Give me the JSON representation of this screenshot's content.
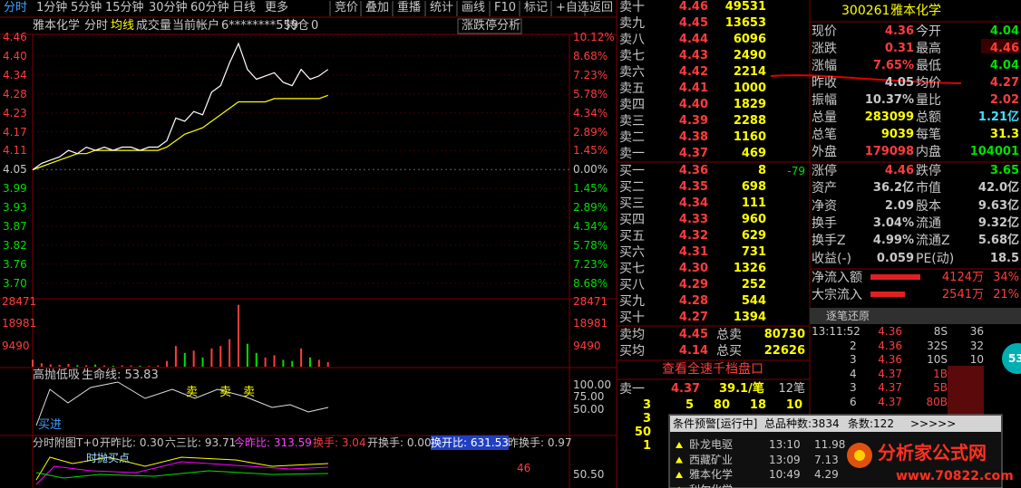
{
  "toolbar": {
    "tabs": [
      "分时",
      "1分钟",
      "5分钟",
      "15分钟",
      "30分钟",
      "60分钟",
      "日线",
      "更多"
    ],
    "buttons": [
      "竞价",
      "叠加",
      "重播",
      "统计",
      "画线",
      "F10",
      "标记",
      "+自选",
      "返回"
    ]
  },
  "info_bar": {
    "stock": "雅本化学",
    "tabs": [
      "分时",
      "均线",
      "成交量"
    ],
    "account_label": "当前帐户",
    "account": "6********559",
    "position_label": "持仓",
    "position": "0",
    "analysis": "涨跌停分析"
  },
  "price_chart": {
    "price_labels": [
      "4.46",
      "4.40",
      "4.34",
      "4.28",
      "4.23",
      "4.17",
      "4.11",
      "4.05",
      "3.99",
      "3.93",
      "3.87",
      "3.82",
      "3.76",
      "3.70"
    ],
    "percent_labels": [
      "10.12%",
      "8.68%",
      "7.23%",
      "5.78%",
      "4.34%",
      "2.89%",
      "1.45%",
      "0.00%",
      "1.45%",
      "2.89%",
      "4.34%",
      "5.78%",
      "7.23%",
      "8.68%"
    ],
    "price": [
      4.05,
      4.07,
      4.08,
      4.09,
      4.11,
      4.1,
      4.12,
      4.11,
      4.12,
      4.11,
      4.12,
      4.12,
      4.11,
      4.12,
      4.12,
      4.14,
      4.21,
      4.2,
      4.23,
      4.22,
      4.29,
      4.31,
      4.38,
      4.44,
      4.36,
      4.33,
      4.34,
      4.35,
      4.32,
      4.31,
      4.36,
      4.33,
      4.34,
      4.36
    ],
    "average": [
      4.05,
      4.06,
      4.07,
      4.08,
      4.09,
      4.1,
      4.1,
      4.11,
      4.11,
      4.11,
      4.11,
      4.11,
      4.11,
      4.11,
      4.11,
      4.12,
      4.14,
      4.16,
      4.17,
      4.18,
      4.2,
      4.22,
      4.24,
      4.26,
      4.26,
      4.26,
      4.26,
      4.27,
      4.27,
      4.27,
      4.27,
      4.27,
      4.27,
      4.28
    ]
  },
  "volume_chart": {
    "labels": [
      "28471",
      "18981",
      "9490"
    ],
    "volumes": [
      3000,
      1500,
      1000,
      800,
      1200,
      700,
      600,
      900,
      500,
      400,
      600,
      500,
      400,
      300,
      500,
      2500,
      9000,
      6000,
      7000,
      4000,
      8000,
      9000,
      12000,
      27000,
      10000,
      6000,
      4000,
      5000,
      3000,
      2500,
      8000,
      4000,
      3000,
      2000
    ]
  },
  "indicator": {
    "name": "高抛低吸",
    "line_label": "生命线: 53.83",
    "labels": [
      "100.00",
      "75.00",
      "50.00"
    ],
    "sell_marks": [
      "卖",
      "卖",
      "卖"
    ],
    "buy_mark": "买进"
  },
  "sub_chart": {
    "title": "分时附图T+0",
    "stats": [
      "开昨比: 0.30",
      "六三比: 93.71",
      "今昨比: 313.59",
      "换手: 3.04",
      "开换手: 0.00",
      "换开比: 631.53",
      "昨换手: 0.97"
    ],
    "point_label": "时抛买点",
    "value_mark": "46",
    "axis_label": "50.50"
  },
  "order_book": {
    "asks": [
      [
        "卖十",
        "4.46",
        "49531"
      ],
      [
        "卖九",
        "4.45",
        "13653"
      ],
      [
        "卖八",
        "4.44",
        "6096"
      ],
      [
        "卖七",
        "4.43",
        "2490"
      ],
      [
        "卖六",
        "4.42",
        "2214"
      ],
      [
        "卖五",
        "4.41",
        "1000"
      ],
      [
        "卖四",
        "4.40",
        "1829"
      ],
      [
        "卖三",
        "4.39",
        "2288"
      ],
      [
        "卖二",
        "4.38",
        "1160"
      ],
      [
        "卖一",
        "4.37",
        "469"
      ]
    ],
    "bids": [
      [
        "买一",
        "4.36",
        "8"
      ],
      [
        "买二",
        "4.35",
        "698"
      ],
      [
        "买三",
        "4.34",
        "111"
      ],
      [
        "买四",
        "4.33",
        "960"
      ],
      [
        "买五",
        "4.32",
        "629"
      ],
      [
        "买六",
        "4.31",
        "731"
      ],
      [
        "买七",
        "4.30",
        "1326"
      ],
      [
        "买八",
        "4.29",
        "252"
      ],
      [
        "买九",
        "4.28",
        "544"
      ],
      [
        "买十",
        "4.27",
        "1394"
      ]
    ],
    "bid1_change": "-79",
    "averages": [
      [
        "卖均",
        "4.45",
        "总卖",
        "80730"
      ],
      [
        "买均",
        "4.14",
        "总买",
        "22626"
      ]
    ],
    "depth_link": "查看全速千档盘口",
    "ask1_summary": [
      "卖一",
      "4.37",
      "39.1/笔",
      "12笔"
    ],
    "ask1_queue": [
      "3",
      "5",
      "80",
      "18",
      "10"
    ],
    "extra": [
      "3",
      "50",
      "1"
    ]
  },
  "quote": {
    "code": "300261",
    "name": "雅本化学",
    "rows": [
      [
        "现价",
        "4.36",
        "今开",
        "4.04"
      ],
      [
        "涨跌",
        "0.31",
        "最高",
        "4.46"
      ],
      [
        "涨幅",
        "7.65%",
        "最低",
        "4.04"
      ],
      [
        "昨收",
        "4.05",
        "均价",
        "4.27"
      ],
      [
        "振幅",
        "10.37%",
        "量比",
        "2.02"
      ],
      [
        "总量",
        "283099",
        "总额",
        "1.21亿"
      ],
      [
        "总笔",
        "9039",
        "每笔",
        "31.3"
      ],
      [
        "外盘",
        "179098",
        "内盘",
        "104001"
      ]
    ],
    "rows2": [
      [
        "涨停",
        "4.46",
        "跌停",
        "3.65"
      ],
      [
        "资产",
        "36.2亿",
        "市值",
        "42.0亿"
      ],
      [
        "净资",
        "2.09",
        "股本",
        "9.63亿"
      ],
      [
        "换手",
        "3.04%",
        "流通",
        "9.32亿"
      ],
      [
        "换手Z",
        "4.99%",
        "流通Z",
        "5.68亿"
      ],
      [
        "收益(-)",
        "0.059",
        "PE(动)",
        "18.5"
      ]
    ],
    "flows": [
      [
        "净流入额",
        "4124万",
        "34%"
      ],
      [
        "大宗流入",
        "2541万",
        "21%"
      ]
    ]
  },
  "tick_panel": {
    "title": "逐笔还原",
    "rows": [
      [
        "13:11:52",
        "4.36",
        "8S",
        "36"
      ],
      [
        "2",
        "4.36",
        "32S",
        "32"
      ],
      [
        "3",
        "4.36",
        "10S",
        "10"
      ],
      [
        "4",
        "4.37",
        "1B"
      ],
      [
        "3",
        "4.37",
        "5B"
      ],
      [
        "6",
        "4.37",
        "80B"
      ]
    ]
  },
  "alert_popup": {
    "title": "条件预警[运行中]",
    "total": "总品种数:3834",
    "count": "条数:122",
    "more": ">>>>>",
    "rows": [
      [
        "卧龙电驱",
        "13:10",
        "11.98"
      ],
      [
        "西藏矿业",
        "13:09",
        "7.13"
      ],
      [
        "雅本化学",
        "10:49",
        "4.29"
      ],
      [
        "利尔化学"
      ]
    ]
  },
  "badge": "53",
  "watermark": {
    "name": "分析家公式网",
    "url": "www.70822.com"
  }
}
